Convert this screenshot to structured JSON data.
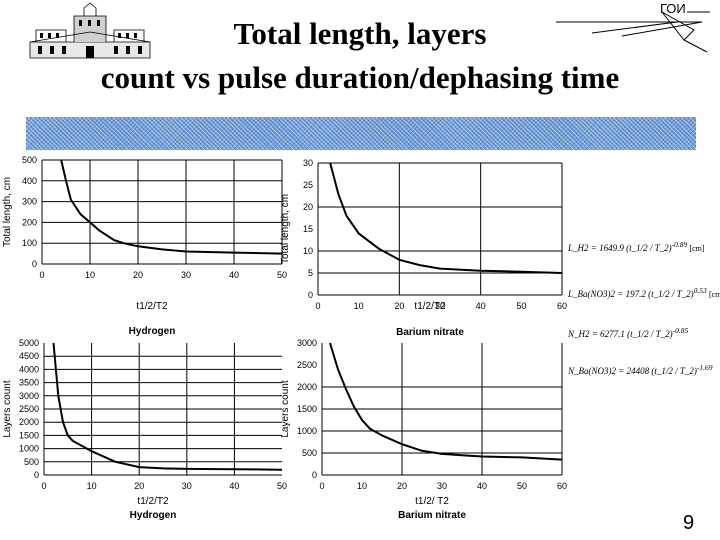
{
  "title_line1": "Total length, layers",
  "title_line2": "count vs pulse duration/dephasing time",
  "logo_right_text": "ГОИ",
  "page_number": "9",
  "colors": {
    "band": "#6f9fd8",
    "grid": "#000000",
    "curve": "#000000"
  },
  "formulas": [
    {
      "label": "L_H2 = 1649.9",
      "fraction": "t_1/2 / T_2",
      "exponent": "-0.89",
      "unit": "[cm]"
    },
    {
      "label": "L_Ba(NO3)2 = 197.2",
      "fraction": "t_1/2 / T_2",
      "exponent": "0.53",
      "unit": "[cm]"
    },
    {
      "label": "N_H2 = 6277.1",
      "fraction": "t_1/2 / T_2",
      "exponent": "-0.85",
      "unit": ""
    },
    {
      "label": "N_Ba(NO3)2 = 24408",
      "fraction": "t_1/2 / T_2",
      "exponent": "-1.69",
      "unit": ""
    }
  ],
  "chart_data": [
    {
      "type": "line",
      "title": "Hydrogen",
      "xlabel": "t1/2/T2",
      "ylabel": "Total length, cm",
      "xlim": [
        0,
        50
      ],
      "ylim": [
        0,
        500
      ],
      "xticks": [
        "0",
        "10",
        "20",
        "30",
        "40",
        "50"
      ],
      "yticks": [
        "0",
        "100",
        "200",
        "300",
        "400",
        "500"
      ],
      "grid_values_y": [
        100,
        200,
        300,
        400,
        500
      ],
      "grid_values_x": [
        10,
        20,
        30,
        40,
        50
      ],
      "x": [
        4,
        5,
        6,
        8,
        10,
        12,
        15,
        17,
        20,
        25,
        30,
        40,
        50
      ],
      "y": [
        500,
        400,
        310,
        240,
        200,
        160,
        115,
        100,
        85,
        70,
        60,
        55,
        50
      ]
    },
    {
      "type": "line",
      "title": "Barium nitrate",
      "xlabel": "t1/2/T2",
      "ylabel": "Total length, cm",
      "xlim": [
        0,
        60
      ],
      "ylim": [
        0,
        30
      ],
      "xticks": [
        "0",
        "10",
        "20",
        "30",
        "40",
        "50",
        "60"
      ],
      "yticks": [
        "0",
        "5",
        "10",
        "15",
        "20",
        "25",
        "30"
      ],
      "grid_values_y": [
        5,
        10,
        20,
        30
      ],
      "grid_values_x": [
        20,
        40,
        60
      ],
      "x": [
        3,
        5,
        7,
        10,
        15,
        20,
        25,
        30,
        40,
        50,
        60
      ],
      "y": [
        30,
        23,
        18,
        14,
        10.5,
        8,
        6.8,
        6,
        5.5,
        5.3,
        5
      ]
    },
    {
      "type": "line",
      "title": "Hydrogen",
      "xlabel": "t1/2/T2",
      "ylabel": "Layers count",
      "xlim": [
        0,
        50
      ],
      "ylim": [
        0,
        5000
      ],
      "xticks": [
        "0",
        "10",
        "20",
        "30",
        "40",
        "50"
      ],
      "yticks": [
        "0",
        "500",
        "1000",
        "1500",
        "2000",
        "2500",
        "3000",
        "3500",
        "4000",
        "4500",
        "5000"
      ],
      "grid_values_y": [
        500,
        1000,
        1500,
        2000,
        2500,
        3000,
        3500,
        4000,
        4500
      ],
      "grid_values_x": [
        10,
        20,
        30,
        40
      ],
      "x": [
        2,
        3,
        4,
        5,
        6,
        8,
        10,
        15,
        20,
        25,
        30,
        40,
        50
      ],
      "y": [
        5000,
        3000,
        2000,
        1500,
        1300,
        1100,
        900,
        500,
        300,
        250,
        230,
        220,
        200
      ]
    },
    {
      "type": "line",
      "title": "Barium nitrate",
      "xlabel": "t1/2/ T2",
      "ylabel": "Layers count",
      "xlim": [
        0,
        60
      ],
      "ylim": [
        0,
        3000
      ],
      "xticks": [
        "0",
        "10",
        "20",
        "30",
        "40",
        "50",
        "60"
      ],
      "yticks": [
        "0",
        "500",
        "1000",
        "1500",
        "2000",
        "2500",
        "3000"
      ],
      "grid_values_y": [
        500,
        1000,
        1500,
        2000
      ],
      "grid_values_x": [
        20,
        40,
        60
      ],
      "x": [
        2,
        4,
        6,
        8,
        10,
        12,
        15,
        20,
        25,
        30,
        35,
        40,
        50,
        60
      ],
      "y": [
        3000,
        2400,
        1950,
        1550,
        1250,
        1050,
        900,
        700,
        550,
        480,
        450,
        420,
        400,
        350
      ]
    }
  ]
}
